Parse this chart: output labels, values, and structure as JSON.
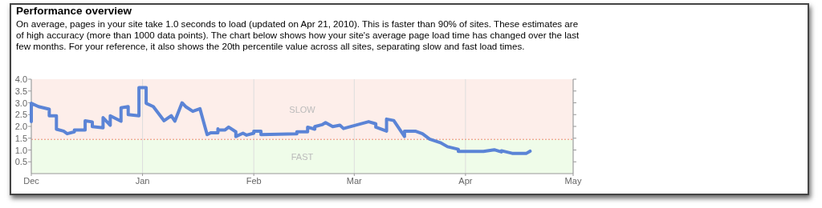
{
  "chart_data": {
    "type": "line",
    "title": "Performance overview",
    "subtitle": "On average, pages in your site take 1.0 seconds to load (updated on Apr 21, 2010). This is faster than 90% of sites. These estimates are of high accuracy (more than 1000 data points). The chart below shows how your site's average page load time has changed over the last few months. For your reference, it also shows the 20th percentile value across all sites, separating slow and fast load times.",
    "x": [
      "2009-12-01",
      "2009-12-01",
      "2009-12-03",
      "2009-12-06",
      "2009-12-06",
      "2009-12-08",
      "2009-12-08",
      "2009-12-10",
      "2009-12-11",
      "2009-12-13",
      "2009-12-13",
      "2009-12-16",
      "2009-12-16",
      "2009-12-18",
      "2009-12-18",
      "2009-12-21",
      "2009-12-21",
      "2009-12-23",
      "2009-12-23",
      "2009-12-26",
      "2009-12-26",
      "2009-12-28",
      "2009-12-28",
      "2009-12-31",
      "2009-12-31",
      "2010-01-02",
      "2010-01-02",
      "2010-01-04",
      "2010-01-07",
      "2010-01-09",
      "2010-01-10",
      "2010-01-12",
      "2010-01-13",
      "2010-01-15",
      "2010-01-17",
      "2010-01-19",
      "2010-01-20",
      "2010-01-22",
      "2010-01-22",
      "2010-01-22",
      "2010-01-24",
      "2010-01-25",
      "2010-01-27",
      "2010-01-27",
      "2010-01-29",
      "2010-01-30",
      "2010-02-01",
      "2010-02-01",
      "2010-02-03",
      "2010-02-03",
      "2010-02-13",
      "2010-02-13",
      "2010-02-16",
      "2010-02-16",
      "2010-02-18",
      "2010-02-18",
      "2010-02-20",
      "2010-02-21",
      "2010-02-23",
      "2010-02-25",
      "2010-02-26",
      "2010-03-05",
      "2010-03-07",
      "2010-03-07",
      "2010-03-10",
      "2010-03-10",
      "2010-03-12",
      "2010-03-15",
      "2010-03-15",
      "2010-03-18",
      "2010-03-20",
      "2010-03-22",
      "2010-03-25",
      "2010-03-27",
      "2010-03-30",
      "2010-03-30",
      "2010-04-06",
      "2010-04-09",
      "2010-04-11",
      "2010-04-11",
      "2010-04-14",
      "2010-04-18",
      "2010-04-19"
    ],
    "series": [
      {
        "color": "#5b84d6",
        "values": [
          2.2,
          2.98,
          2.84,
          2.73,
          2.45,
          2.45,
          1.88,
          1.8,
          1.69,
          1.77,
          1.85,
          1.85,
          2.24,
          2.19,
          1.99,
          1.94,
          2.37,
          2.05,
          2.45,
          2.22,
          2.79,
          2.84,
          2.5,
          2.45,
          3.64,
          3.64,
          2.98,
          2.84,
          2.24,
          2.45,
          2.22,
          3.0,
          2.84,
          2.64,
          2.75,
          1.65,
          1.73,
          1.73,
          1.9,
          1.85,
          1.85,
          1.97,
          1.77,
          1.57,
          1.71,
          1.63,
          1.71,
          1.8,
          1.8,
          1.65,
          1.69,
          1.77,
          1.77,
          1.97,
          1.88,
          1.99,
          2.07,
          2.16,
          1.99,
          2.05,
          1.91,
          2.2,
          2.11,
          1.97,
          1.8,
          2.31,
          2.25,
          1.57,
          1.8,
          1.8,
          1.69,
          1.46,
          1.31,
          1.14,
          1.03,
          0.94,
          0.94,
          1.01,
          0.92,
          0.97,
          0.86,
          0.86,
          0.95
        ]
      }
    ],
    "xlim": [
      "2009-12-01",
      "2010-05-01"
    ],
    "xticks": [
      {
        "value": "2009-12-01",
        "label": "Dec"
      },
      {
        "value": "2010-01-01",
        "label": "Jan"
      },
      {
        "value": "2010-02-01",
        "label": "Feb"
      },
      {
        "value": "2010-03-01",
        "label": "Mar"
      },
      {
        "value": "2010-04-01",
        "label": "Apr"
      },
      {
        "value": "2010-05-01",
        "label": "May"
      }
    ],
    "ylim": [
      0,
      4
    ],
    "yticks": [
      {
        "value": 0.5,
        "label": "0.5"
      },
      {
        "value": 1,
        "label": "1.0"
      },
      {
        "value": 1.5,
        "label": "1.5"
      },
      {
        "value": 2,
        "label": "2.0"
      },
      {
        "value": 2.5,
        "label": "2.5"
      },
      {
        "value": 3,
        "label": "3.0"
      },
      {
        "value": 3.5,
        "label": "3.5"
      },
      {
        "value": 4,
        "label": "4.0"
      }
    ],
    "bands": [
      {
        "axis": "y",
        "from": 1.45,
        "to": 4,
        "label": "SLOW",
        "color": "#fdeeea"
      },
      {
        "axis": "y",
        "from": 0,
        "to": 1.45,
        "label": "FAST",
        "color": "#effce9"
      }
    ],
    "ref_lines": [
      {
        "axis": "y",
        "value": 1.45,
        "color": "#f08a70",
        "line_style": "dotted"
      }
    ],
    "grid": "x",
    "marker": "none",
    "line_style": "solid"
  }
}
